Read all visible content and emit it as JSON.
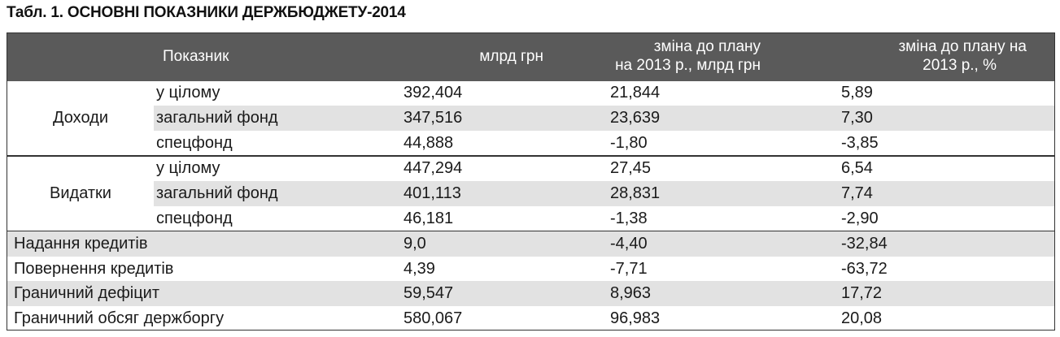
{
  "title": "Табл. 1. ОСНОВНІ ПОКАЗНИКИ ДЕРЖБЮДЖЕТУ-2014",
  "headers": {
    "indicator": "Показник",
    "bn": "млрд грн",
    "change_bn_1": "зміна до плану",
    "change_bn_2": "на 2013 р., млрд грн",
    "change_pct_1": "зміна до плану на",
    "change_pct_2": "2013 р., %"
  },
  "groups": [
    {
      "label": "Доходи",
      "rows": [
        {
          "label": "у цілому",
          "bn": "392,404",
          "chg": "21,844",
          "pct": "5,89"
        },
        {
          "label": "загальний фонд",
          "bn": "347,516",
          "chg": "23,639",
          "pct": "7,30"
        },
        {
          "label": "спецфонд",
          "bn": "44,888",
          "chg": "-1,80",
          "pct": "-3,85"
        }
      ]
    },
    {
      "label": "Видатки",
      "rows": [
        {
          "label": "у цілому",
          "bn": "447,294",
          "chg": "27,45",
          "pct": "6,54"
        },
        {
          "label": "загальний фонд",
          "bn": "401,113",
          "chg": "28,831",
          "pct": "7,74"
        },
        {
          "label": "спецфонд",
          "bn": "46,181",
          "chg": "-1,38",
          "pct": "-2,90"
        }
      ]
    }
  ],
  "rows": [
    {
      "label": "Надання кредитів",
      "bn": "9,0",
      "chg": "-4,40",
      "pct": "-32,84"
    },
    {
      "label": "Повернення кредитів",
      "bn": "4,39",
      "chg": "-7,71",
      "pct": "-63,72"
    },
    {
      "label": "Граничний дефіцит",
      "bn": "59,547",
      "chg": "8,963",
      "pct": "17,72"
    },
    {
      "label": "Граничний обсяг держборгу",
      "bn": "580,067",
      "chg": "96,983",
      "pct": "20,08"
    }
  ]
}
